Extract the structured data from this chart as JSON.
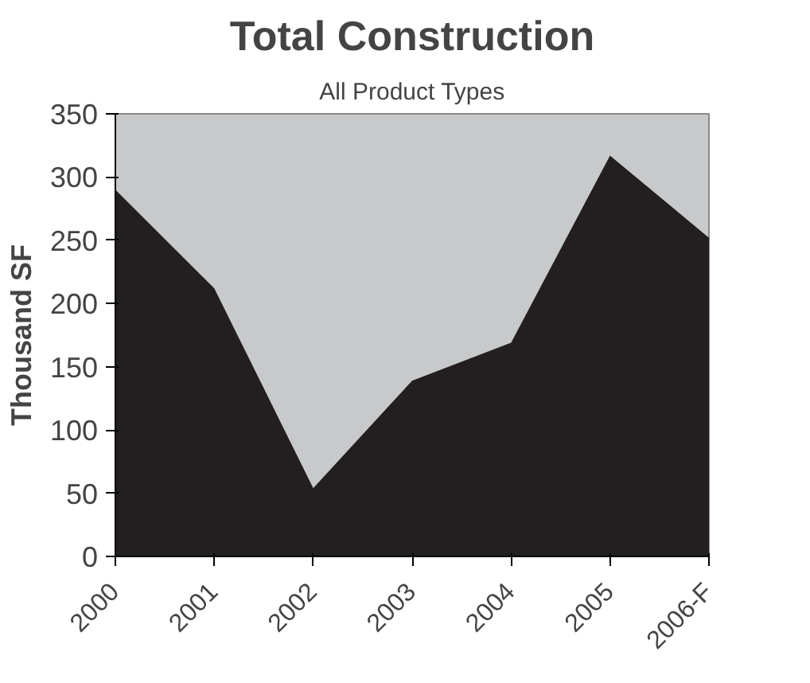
{
  "chart_data": {
    "type": "area",
    "title": "Total Construction",
    "subtitle": "All Product Types",
    "ylabel": "Thousand SF",
    "categories": [
      "2000",
      "2001",
      "2002",
      "2003",
      "2004",
      "2005",
      "2006-F"
    ],
    "series": [
      {
        "color": "#231f20",
        "values": [
          290,
          212,
          54,
          139,
          169,
          317,
          252
        ]
      }
    ],
    "ylim": [
      0,
      350
    ],
    "yticks": [
      0,
      50,
      100,
      150,
      200,
      250,
      300,
      350
    ],
    "grid": false
  }
}
